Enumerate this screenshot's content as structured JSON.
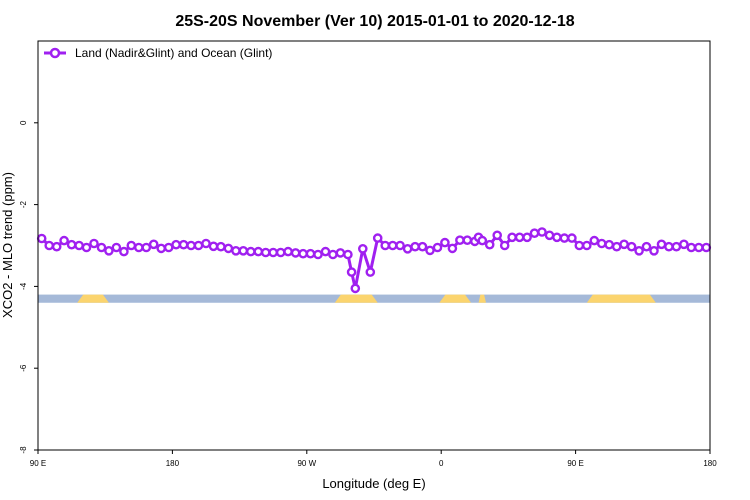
{
  "chart_data": {
    "type": "line",
    "title": "25S-20S November (Ver 10)   2015-01-01 to 2020-12-18",
    "xlabel": "Longitude (deg E)",
    "ylabel": "XCO2 - MLO trend (ppm)",
    "xlim": [
      90,
      450
    ],
    "ylim": [
      -8,
      2
    ],
    "x_ticks": [
      {
        "value": 90,
        "label": "90 E"
      },
      {
        "value": 162,
        "label": "180"
      },
      {
        "value": 234,
        "label": "90 W"
      },
      {
        "value": 306,
        "label": "0"
      },
      {
        "value": 378,
        "label": "90 E"
      },
      {
        "value": 450,
        "label": "180"
      }
    ],
    "y_ticks": [
      {
        "value": 0,
        "label": "0"
      },
      {
        "value": -2,
        "label": "-2"
      },
      {
        "value": -4,
        "label": "-4"
      },
      {
        "value": -6,
        "label": "-6"
      },
      {
        "value": -8,
        "label": "-8"
      }
    ],
    "legend_position": "top-left",
    "colors": {
      "series": "#a020f0",
      "ocean": "#a5b9d8",
      "land": "#fbd46e",
      "frame": "#000000"
    },
    "map_strip": {
      "y_range": [
        -4.4,
        -4.2
      ],
      "land_segments": [
        [
          111,
          128
        ],
        [
          249,
          272
        ],
        [
          305,
          322
        ],
        [
          326,
          330
        ],
        [
          384,
          421
        ]
      ]
    },
    "series": [
      {
        "name": "Land (Nadir&Glint) and Ocean (Glint)",
        "x": [
          92,
          96,
          100,
          104,
          108,
          112,
          116,
          120,
          124,
          128,
          132,
          136,
          140,
          144,
          148,
          152,
          156,
          160,
          164,
          168,
          172,
          176,
          180,
          184,
          188,
          192,
          196,
          200,
          204,
          208,
          212,
          216,
          220,
          224,
          228,
          232,
          236,
          240,
          244,
          248,
          252,
          256,
          258,
          260,
          264,
          268,
          272,
          276,
          280,
          284,
          288,
          292,
          296,
          300,
          304,
          308,
          312,
          316,
          320,
          324,
          326,
          328,
          332,
          336,
          340,
          344,
          348,
          352,
          356,
          360,
          364,
          368,
          372,
          376,
          380,
          384,
          388,
          392,
          396,
          400,
          404,
          408,
          412,
          416,
          420,
          424,
          428,
          432,
          436,
          440,
          444,
          448
        ],
        "values": [
          -2.83,
          -3.0,
          -3.03,
          -2.88,
          -2.98,
          -3.0,
          -3.05,
          -2.95,
          -3.05,
          -3.13,
          -3.05,
          -3.15,
          -3.0,
          -3.05,
          -3.05,
          -2.97,
          -3.07,
          -3.05,
          -2.98,
          -2.98,
          -3.0,
          -3.0,
          -2.95,
          -3.02,
          -3.03,
          -3.07,
          -3.13,
          -3.13,
          -3.15,
          -3.15,
          -3.17,
          -3.17,
          -3.17,
          -3.15,
          -3.18,
          -3.2,
          -3.2,
          -3.22,
          -3.15,
          -3.22,
          -3.18,
          -3.22,
          -3.65,
          -4.05,
          -3.08,
          -3.65,
          -2.82,
          -3.0,
          -3.0,
          -3.0,
          -3.08,
          -3.03,
          -3.03,
          -3.12,
          -3.05,
          -2.93,
          -3.07,
          -2.87,
          -2.87,
          -2.9,
          -2.8,
          -2.88,
          -2.98,
          -2.75,
          -3.0,
          -2.8,
          -2.8,
          -2.8,
          -2.7,
          -2.67,
          -2.75,
          -2.8,
          -2.82,
          -2.82,
          -3.0,
          -3.0,
          -2.88,
          -2.95,
          -2.98,
          -3.03,
          -2.97,
          -3.03,
          -3.13,
          -3.03,
          -3.13,
          -2.97,
          -3.03,
          -3.03,
          -2.97,
          -3.05,
          -3.05,
          -3.05
        ]
      }
    ]
  }
}
